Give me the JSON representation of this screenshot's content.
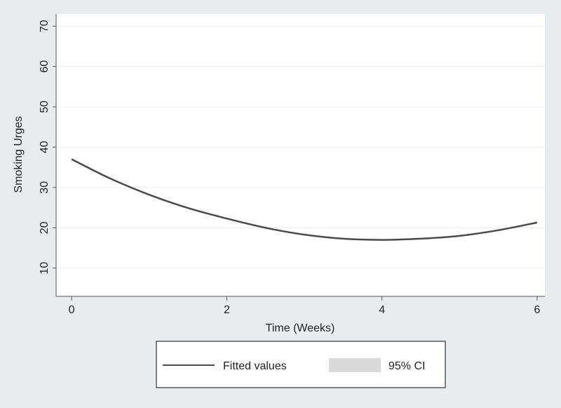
{
  "chart_data": {
    "type": "line",
    "xlabel": "Time (Weeks)",
    "ylabel": "Smoking Urges",
    "xlim": [
      -0.2,
      6.1
    ],
    "ylim": [
      3,
      73
    ],
    "xticks": [
      0,
      2,
      4,
      6
    ],
    "yticks": [
      10,
      20,
      30,
      40,
      50,
      60,
      70
    ],
    "grid": "horizontal",
    "legend_position": "bottom",
    "series": [
      {
        "name": "Fitted values",
        "color": "#4a4a4a",
        "x": [
          0,
          0.5,
          1,
          1.5,
          2,
          2.5,
          3,
          3.5,
          4,
          4.5,
          5,
          5.5,
          6
        ],
        "y": [
          37.0,
          32.2,
          28.2,
          24.9,
          22.3,
          20.0,
          18.3,
          17.3,
          17.0,
          17.3,
          18.0,
          19.4,
          21.3
        ]
      }
    ],
    "ci": {
      "name": "95% CI",
      "color": "#d9d9d9"
    }
  }
}
